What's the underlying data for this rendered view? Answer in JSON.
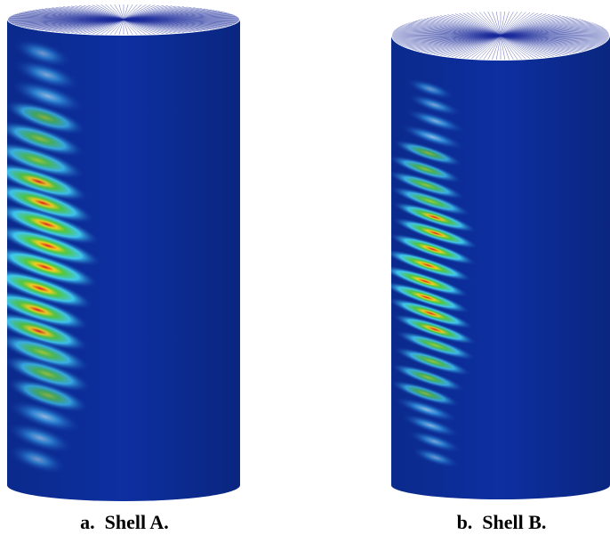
{
  "figures": [
    {
      "caption": "a.  Shell A."
    },
    {
      "caption": "b.  Shell B."
    }
  ]
}
